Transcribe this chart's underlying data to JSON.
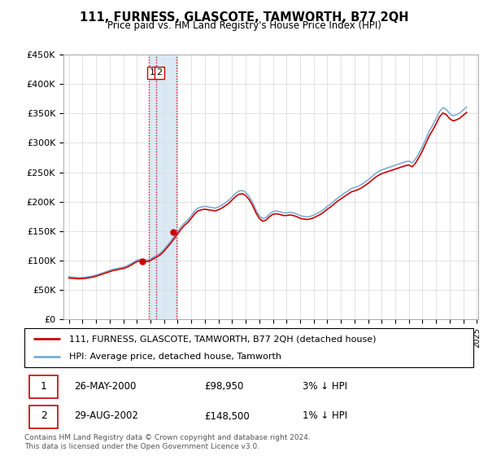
{
  "title": "111, FURNESS, GLASCOTE, TAMWORTH, B77 2QH",
  "subtitle": "Price paid vs. HM Land Registry's House Price Index (HPI)",
  "ylim": [
    0,
    450000
  ],
  "yticks": [
    0,
    50000,
    100000,
    150000,
    200000,
    250000,
    300000,
    350000,
    400000,
    450000
  ],
  "ytick_labels": [
    "£0",
    "£50K",
    "£100K",
    "£150K",
    "£200K",
    "£250K",
    "£300K",
    "£350K",
    "£400K",
    "£450K"
  ],
  "hpi_color": "#7bafd4",
  "price_color": "#cc0000",
  "background_color": "#ffffff",
  "grid_color": "#dddddd",
  "legend_label_price": "111, FURNESS, GLASCOTE, TAMWORTH, B77 2QH (detached house)",
  "legend_label_hpi": "HPI: Average price, detached house, Tamworth",
  "transaction1_date": "26-MAY-2000",
  "transaction1_price": 98950,
  "transaction1_note": "3% ↓ HPI",
  "transaction2_date": "29-AUG-2002",
  "transaction2_price": 148500,
  "transaction2_note": "1% ↓ HPI",
  "footnote": "Contains HM Land Registry data © Crown copyright and database right 2024.\nThis data is licensed under the Open Government Licence v3.0.",
  "t1_year": 2000.4,
  "t2_year": 2002.66,
  "hpi_years": [
    1995.0,
    1995.25,
    1995.5,
    1995.75,
    1996.0,
    1996.25,
    1996.5,
    1996.75,
    1997.0,
    1997.25,
    1997.5,
    1997.75,
    1998.0,
    1998.25,
    1998.5,
    1998.75,
    1999.0,
    1999.25,
    1999.5,
    1999.75,
    2000.0,
    2000.25,
    2000.5,
    2000.75,
    2001.0,
    2001.25,
    2001.5,
    2001.75,
    2002.0,
    2002.25,
    2002.5,
    2002.75,
    2003.0,
    2003.25,
    2003.5,
    2003.75,
    2004.0,
    2004.25,
    2004.5,
    2004.75,
    2005.0,
    2005.25,
    2005.5,
    2005.75,
    2006.0,
    2006.25,
    2006.5,
    2006.75,
    2007.0,
    2007.25,
    2007.5,
    2007.75,
    2008.0,
    2008.25,
    2008.5,
    2008.75,
    2009.0,
    2009.25,
    2009.5,
    2009.75,
    2010.0,
    2010.25,
    2010.5,
    2010.75,
    2011.0,
    2011.25,
    2011.5,
    2011.75,
    2012.0,
    2012.25,
    2012.5,
    2012.75,
    2013.0,
    2013.25,
    2013.5,
    2013.75,
    2014.0,
    2014.25,
    2014.5,
    2014.75,
    2015.0,
    2015.25,
    2015.5,
    2015.75,
    2016.0,
    2016.25,
    2016.5,
    2016.75,
    2017.0,
    2017.25,
    2017.5,
    2017.75,
    2018.0,
    2018.25,
    2018.5,
    2018.75,
    2019.0,
    2019.25,
    2019.5,
    2019.75,
    2020.0,
    2020.25,
    2020.5,
    2020.75,
    2021.0,
    2021.25,
    2021.5,
    2021.75,
    2022.0,
    2022.25,
    2022.5,
    2022.75,
    2023.0,
    2023.25,
    2023.5,
    2023.75,
    2024.0,
    2024.25
  ],
  "hpi_values": [
    72000,
    71500,
    71000,
    70500,
    71000,
    71500,
    72500,
    73500,
    75000,
    77000,
    79000,
    81000,
    83000,
    85000,
    86000,
    87500,
    88500,
    90500,
    93500,
    97000,
    100500,
    102000,
    101500,
    100500,
    102500,
    106000,
    109000,
    113000,
    119000,
    126000,
    133000,
    141000,
    149000,
    157000,
    164000,
    169000,
    176000,
    184000,
    189000,
    191000,
    192000,
    191000,
    190000,
    189000,
    191000,
    194000,
    198000,
    202000,
    208000,
    214000,
    218000,
    219000,
    216000,
    209000,
    199000,
    186000,
    176000,
    171000,
    173000,
    179000,
    183000,
    184000,
    183000,
    181000,
    181000,
    182000,
    181000,
    179000,
    176000,
    175000,
    174000,
    175000,
    177000,
    180000,
    183000,
    187000,
    192000,
    196000,
    201000,
    206000,
    210000,
    214000,
    218000,
    222000,
    224000,
    226000,
    229000,
    233000,
    237000,
    242000,
    247000,
    251000,
    254000,
    256000,
    258000,
    260000,
    262000,
    264000,
    266000,
    268000,
    269000,
    266000,
    273000,
    283000,
    294000,
    307000,
    320000,
    330000,
    341000,
    353000,
    360000,
    357000,
    350000,
    346000,
    348000,
    351000,
    356000,
    361000
  ]
}
